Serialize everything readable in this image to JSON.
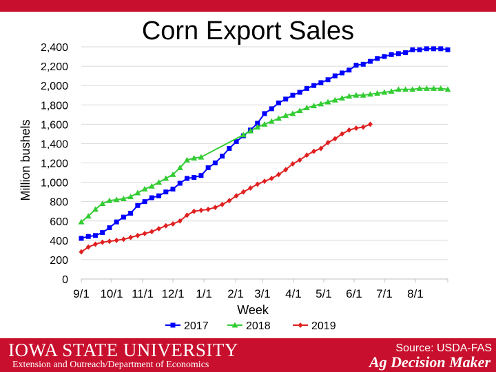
{
  "slide": {
    "university": "IOWA STATE UNIVERSITY",
    "department": "Extension and Outreach/Department of Economics",
    "source": "Source: USDA-FAS",
    "brand": "Ag Decision Maker"
  },
  "colors": {
    "brand_red": "#c8102e",
    "series_2017": "#0000ff",
    "series_2018": "#33cc33",
    "series_2019": "#e02020",
    "grid": "#d9d9d9"
  },
  "chart_data": {
    "type": "line",
    "title": "Corn Export Sales",
    "xlabel": "Week",
    "ylabel": "Million bushels",
    "ylim": [
      0,
      2400
    ],
    "yticks": [
      0,
      200,
      400,
      600,
      800,
      1000,
      1200,
      1400,
      1600,
      1800,
      2000,
      2200,
      2400
    ],
    "ytick_labels": [
      "0",
      "200",
      "400",
      "600",
      "800",
      "1,000",
      "1,200",
      "1,400",
      "1,600",
      "1,800",
      "2,000",
      "2,200",
      "2,400"
    ],
    "xlim": [
      0,
      52
    ],
    "xticks": [
      0,
      4.3,
      8.7,
      13,
      17.4,
      21.9,
      25.7,
      30.1,
      34.4,
      38.7,
      43,
      47.4,
      52
    ],
    "xtick_labels": [
      "9/1",
      "10/1",
      "11/1",
      "12/1",
      "1/1",
      "2/1",
      "3/1",
      "4/1",
      "5/1",
      "6/1",
      "7/1",
      "8/1",
      ""
    ],
    "legend_position": "bottom",
    "series": [
      {
        "name": "2017",
        "marker": "square",
        "color": "#0000ff",
        "x": [
          0,
          1,
          2,
          3,
          4,
          5,
          6,
          7,
          8,
          9,
          10,
          11,
          12,
          13,
          14,
          15,
          16,
          17,
          18,
          19,
          20,
          21,
          22,
          23,
          24,
          25,
          26,
          27,
          28,
          29,
          30,
          31,
          32,
          33,
          34,
          35,
          36,
          37,
          38,
          39,
          40,
          41,
          42,
          43,
          44,
          45,
          46,
          47,
          48,
          49,
          50,
          51,
          52
        ],
        "values": [
          420,
          440,
          450,
          480,
          530,
          590,
          640,
          680,
          760,
          800,
          840,
          860,
          900,
          930,
          990,
          1040,
          1050,
          1070,
          1150,
          1200,
          1270,
          1350,
          1420,
          1480,
          1540,
          1610,
          1710,
          1760,
          1820,
          1860,
          1900,
          1930,
          1970,
          2000,
          2030,
          2060,
          2100,
          2130,
          2160,
          2210,
          2220,
          2250,
          2280,
          2300,
          2320,
          2330,
          2340,
          2370,
          2370,
          2380,
          2380,
          2380,
          2370
        ]
      },
      {
        "name": "2018",
        "marker": "triangle",
        "color": "#33cc33",
        "x": [
          0,
          1,
          2,
          3,
          4,
          5,
          6,
          7,
          8,
          9,
          10,
          11,
          12,
          13,
          14,
          15,
          16,
          17,
          23,
          24,
          25,
          26,
          27,
          28,
          29,
          30,
          31,
          32,
          33,
          34,
          35,
          36,
          37,
          38,
          39,
          40,
          41,
          42,
          43,
          44,
          45,
          46,
          47,
          48,
          49,
          50,
          51,
          52
        ],
        "values": [
          590,
          650,
          720,
          780,
          810,
          820,
          830,
          850,
          890,
          930,
          960,
          1000,
          1040,
          1080,
          1150,
          1230,
          1250,
          1260,
          1490,
          1530,
          1570,
          1600,
          1630,
          1660,
          1690,
          1710,
          1740,
          1770,
          1790,
          1810,
          1830,
          1850,
          1870,
          1890,
          1900,
          1900,
          1910,
          1920,
          1930,
          1940,
          1960,
          1960,
          1960,
          1970,
          1970,
          1970,
          1970,
          1960
        ]
      },
      {
        "name": "2019",
        "marker": "diamond",
        "color": "#e02020",
        "x": [
          0,
          1,
          2,
          3,
          4,
          5,
          6,
          7,
          8,
          9,
          10,
          11,
          12,
          13,
          14,
          15,
          16,
          17,
          18,
          19,
          20,
          21,
          22,
          23,
          24,
          25,
          26,
          27,
          28,
          29,
          30,
          31,
          32,
          33,
          34,
          35,
          36,
          37,
          38,
          39,
          40,
          41
        ],
        "values": [
          280,
          330,
          360,
          380,
          390,
          400,
          410,
          430,
          450,
          470,
          490,
          520,
          550,
          570,
          600,
          660,
          700,
          710,
          720,
          740,
          770,
          810,
          860,
          900,
          940,
          980,
          1010,
          1040,
          1080,
          1130,
          1190,
          1230,
          1280,
          1320,
          1350,
          1410,
          1450,
          1500,
          1540,
          1560,
          1570,
          1600
        ]
      }
    ]
  }
}
